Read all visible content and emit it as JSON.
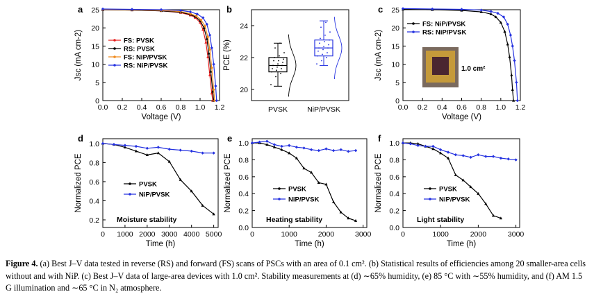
{
  "caption": {
    "label": "Figure 4.",
    "text": "(a) Best J–V data tested in reverse (RS) and forward (FS) scans of PSCs with an area of 0.1 cm². (b) Statistical results of efficiencies among 20 smaller-area cells without and with NiP. (c) Best J–V data of large-area devices with 1.0 cm². Stability measurements at (d) ∼65% humidity, (e) 85 °C with ∼55% humidity, and (f) AM 1.5 G illumination and ∼65 °C in N₂ atmosphere."
  },
  "colors": {
    "black": "#000000",
    "red": "#e8201f",
    "orange": "#f08a1c",
    "blue": "#2431e0"
  },
  "chart_data": [
    {
      "id": "a",
      "panel_label": "a",
      "type": "line",
      "xlabel": "Voltage (V)",
      "ylabel": "Jsc (mA cm-2)",
      "xlim": [
        0,
        1.2
      ],
      "ylim": [
        0,
        25
      ],
      "xticks": [
        "0.0",
        "0.2",
        "0.4",
        "0.6",
        "0.8",
        "1.0",
        "1.2"
      ],
      "yticks": [
        "0",
        "5",
        "10",
        "15",
        "20",
        "25"
      ],
      "legend_position": "center-left",
      "series": [
        {
          "name": "FS: PVSK",
          "color": "#e8201f",
          "x": [
            0,
            0.3,
            0.6,
            0.8,
            0.9,
            0.95,
            1.0,
            1.03,
            1.06,
            1.08,
            1.1,
            1.12,
            1.13
          ],
          "y": [
            25,
            24.9,
            24.7,
            24.2,
            23.5,
            22.8,
            21.5,
            19.5,
            16,
            12,
            7,
            2,
            0
          ]
        },
        {
          "name": "RS: PVSK",
          "color": "#000000",
          "x": [
            0,
            0.3,
            0.6,
            0.8,
            0.9,
            0.95,
            1.0,
            1.04,
            1.07,
            1.09,
            1.11,
            1.13,
            1.14
          ],
          "y": [
            25,
            24.9,
            24.7,
            24.3,
            23.7,
            23.1,
            22.0,
            20,
            17,
            13,
            8,
            2.5,
            0
          ]
        },
        {
          "name": "FS: NiP/PVSK",
          "color": "#f08a1c",
          "x": [
            0,
            0.3,
            0.6,
            0.8,
            0.9,
            0.96,
            1.01,
            1.05,
            1.08,
            1.1,
            1.12,
            1.14,
            1.15
          ],
          "y": [
            25.1,
            25,
            24.8,
            24.5,
            23.9,
            23.3,
            22.2,
            20.5,
            17.5,
            14,
            9,
            3,
            0
          ]
        },
        {
          "name": "RS: NiP/PVSK",
          "color": "#2431e0",
          "x": [
            0,
            0.3,
            0.6,
            0.8,
            0.9,
            0.97,
            1.03,
            1.07,
            1.1,
            1.12,
            1.14,
            1.16,
            1.17
          ],
          "y": [
            25.2,
            25.1,
            25,
            24.8,
            24.4,
            23.8,
            22.8,
            21,
            18,
            14.5,
            10,
            4,
            0
          ]
        }
      ]
    },
    {
      "id": "b",
      "panel_label": "b",
      "type": "box",
      "ylabel": "PCE (%)",
      "ylim": [
        19.3,
        25.0
      ],
      "yticks": [
        "20",
        "22",
        "24"
      ],
      "categories": [
        "PVSK",
        "NiP/PVSK"
      ],
      "series": [
        {
          "name": "PVSK",
          "color": "#000000",
          "box": [
            21.1,
            21.5,
            22.0
          ],
          "whiskers": [
            20.2,
            22.9
          ],
          "points": [
            20.3,
            20.8,
            21.0,
            21.1,
            21.2,
            21.3,
            21.3,
            21.4,
            21.5,
            21.5,
            21.6,
            21.7,
            21.8,
            21.8,
            21.9,
            22.0,
            22.1,
            22.3,
            22.6,
            22.9
          ]
        },
        {
          "name": "NiP/PVSK",
          "color": "#2431e0",
          "box": [
            22.1,
            22.6,
            23.1
          ],
          "whiskers": [
            21.5,
            24.3
          ],
          "points": [
            21.6,
            21.8,
            22.0,
            22.1,
            22.2,
            22.3,
            22.4,
            22.5,
            22.6,
            22.6,
            22.7,
            22.8,
            22.9,
            23.0,
            23.1,
            23.2,
            23.4,
            23.6,
            23.9,
            24.2
          ]
        }
      ]
    },
    {
      "id": "c",
      "panel_label": "c",
      "type": "line",
      "xlabel": "Voltage (V)",
      "ylabel": "Jsc (mA cm-2)",
      "xlim": [
        0,
        1.2
      ],
      "ylim": [
        0,
        25
      ],
      "xticks": [
        "0.0",
        "0.2",
        "0.4",
        "0.6",
        "0.8",
        "1.0",
        "1.2"
      ],
      "yticks": [
        "0",
        "5",
        "10",
        "15",
        "20",
        "25"
      ],
      "legend_position": "top-left",
      "inset_label": "1.0 cm²",
      "series": [
        {
          "name": "FS: NiP/PVSK",
          "color": "#000000",
          "x": [
            0,
            0.3,
            0.6,
            0.8,
            0.9,
            0.95,
            1.0,
            1.04,
            1.07,
            1.09,
            1.11,
            1.12,
            1.13
          ],
          "y": [
            25.1,
            25,
            24.8,
            24.4,
            23.8,
            23,
            21.5,
            19,
            15.5,
            12,
            7,
            3,
            0
          ]
        },
        {
          "name": "RS: NiP/PVSK",
          "color": "#2431e0",
          "x": [
            0,
            0.3,
            0.6,
            0.8,
            0.9,
            0.97,
            1.03,
            1.07,
            1.1,
            1.12,
            1.14,
            1.16,
            1.17
          ],
          "y": [
            25.3,
            25.2,
            25.1,
            24.9,
            24.5,
            24,
            23,
            21,
            18,
            15,
            11,
            5,
            0
          ]
        }
      ]
    },
    {
      "id": "d",
      "panel_label": "d",
      "type": "line",
      "xlabel": "Time (h)",
      "ylabel": "Normalized PCE",
      "xlim": [
        0,
        5200
      ],
      "ylim": [
        0.12,
        1.05
      ],
      "xticks": [
        "0",
        "1000",
        "2000",
        "3000",
        "4000",
        "5000"
      ],
      "yticks": [
        "0.2",
        "0.4",
        "0.6",
        "0.8",
        "1.0"
      ],
      "annotation": "Moisture stability",
      "legend_position": "center-left",
      "series": [
        {
          "name": "PVSK",
          "color": "#000000",
          "x": [
            0,
            500,
            1000,
            1500,
            2000,
            2500,
            3000,
            3500,
            4000,
            4500,
            5000
          ],
          "y": [
            1.0,
            0.99,
            0.96,
            0.92,
            0.88,
            0.9,
            0.81,
            0.62,
            0.5,
            0.35,
            0.26
          ]
        },
        {
          "name": "NiP/PVSK",
          "color": "#2431e0",
          "x": [
            0,
            500,
            1000,
            1500,
            2000,
            2500,
            3000,
            3500,
            4000,
            4500,
            5000
          ],
          "y": [
            1.0,
            0.99,
            0.98,
            0.97,
            0.95,
            0.96,
            0.94,
            0.93,
            0.92,
            0.9,
            0.9
          ]
        }
      ]
    },
    {
      "id": "e",
      "panel_label": "e",
      "type": "line",
      "xlabel": "Time (h)",
      "ylabel": "Normalized PCE",
      "xlim": [
        0,
        3100
      ],
      "ylim": [
        0.0,
        1.05
      ],
      "xticks": [
        "0",
        "1000",
        "2000",
        "3000"
      ],
      "yticks": [
        "0.0",
        "0.2",
        "0.4",
        "0.6",
        "0.8",
        "1.0"
      ],
      "annotation": "Heating stability",
      "legend_position": "center-left",
      "series": [
        {
          "name": "PVSK",
          "color": "#000000",
          "x": [
            0,
            200,
            400,
            600,
            800,
            1000,
            1200,
            1400,
            1600,
            1800,
            2000,
            2200,
            2400,
            2600,
            2800
          ],
          "y": [
            1.0,
            1.0,
            0.98,
            0.95,
            0.92,
            0.88,
            0.82,
            0.7,
            0.65,
            0.53,
            0.51,
            0.3,
            0.18,
            0.11,
            0.08
          ]
        },
        {
          "name": "NiP/PVSK",
          "color": "#2431e0",
          "x": [
            0,
            200,
            400,
            600,
            800,
            1000,
            1200,
            1400,
            1600,
            1800,
            2000,
            2200,
            2400,
            2600,
            2800
          ],
          "y": [
            1.0,
            1.01,
            1.02,
            0.98,
            0.96,
            0.97,
            0.95,
            0.94,
            0.92,
            0.91,
            0.93,
            0.91,
            0.92,
            0.9,
            0.91
          ]
        }
      ]
    },
    {
      "id": "f",
      "panel_label": "f",
      "type": "line",
      "xlabel": "Time (h)",
      "ylabel": "Normalized PCE",
      "xlim": [
        0,
        3100
      ],
      "ylim": [
        0.0,
        1.05
      ],
      "xticks": [
        "0",
        "1000",
        "2000",
        "3000"
      ],
      "yticks": [
        "0.0",
        "0.2",
        "0.4",
        "0.6",
        "0.8",
        "1.0"
      ],
      "annotation": "Light stability",
      "legend_position": "center-left",
      "series": [
        {
          "name": "PVSK",
          "color": "#000000",
          "x": [
            0,
            200,
            400,
            600,
            800,
            1000,
            1200,
            1400,
            1600,
            1800,
            2000,
            2200,
            2400,
            2600
          ],
          "y": [
            1.0,
            1.0,
            0.99,
            0.96,
            0.93,
            0.88,
            0.82,
            0.62,
            0.56,
            0.48,
            0.4,
            0.28,
            0.14,
            0.11
          ]
        },
        {
          "name": "NiP/PVSK",
          "color": "#2431e0",
          "x": [
            0,
            200,
            400,
            600,
            800,
            1000,
            1200,
            1400,
            1600,
            1800,
            2000,
            2200,
            2400,
            2600,
            2800,
            3000
          ],
          "y": [
            1.0,
            0.99,
            0.97,
            0.96,
            0.96,
            0.92,
            0.89,
            0.86,
            0.85,
            0.83,
            0.86,
            0.84,
            0.84,
            0.82,
            0.81,
            0.8
          ]
        }
      ]
    }
  ]
}
